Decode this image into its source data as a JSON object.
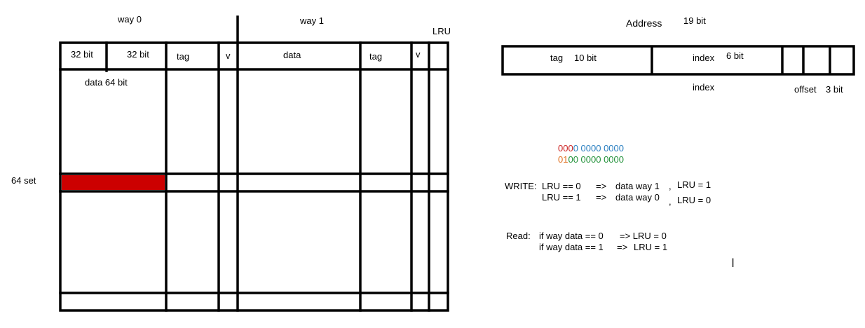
{
  "cache": {
    "way0_label": "way 0",
    "way1_label": "way 1",
    "lru_label": "LRU",
    "header_32bit_a": "32 bit",
    "header_32bit_b": "32 bit",
    "header_tag0": "tag",
    "header_v0": "v",
    "header_data1": "data",
    "header_tag1": "tag",
    "header_v1": "v",
    "data_width_label": "data 64 bit",
    "set_count_label": "64 set",
    "highlight_color": "#cc0000"
  },
  "address": {
    "title": "Address",
    "total_bits": "19 bit",
    "tag_label": "tag",
    "tag_bits": "10 bit",
    "index_label": "index",
    "index_bits": "6 bit",
    "index_below": "index",
    "offset_label": "offset",
    "offset_bits": "3 bit"
  },
  "bit_example": {
    "line1": [
      {
        "text": "000",
        "color": "#cc2222"
      },
      {
        "text": "0 0000 0000",
        "color": "#2a7fc1"
      }
    ],
    "line2": [
      {
        "text": "01",
        "color": "#e07020"
      },
      {
        "text": "00 0000 0000",
        "color": "#22913a"
      }
    ]
  },
  "write_rules": {
    "prefix": "WRITE:",
    "rule1_cond": "LRU == 0",
    "rule1_arrow": "=>",
    "rule1_action": "data way 1",
    "rule1_sep": ",",
    "rule1_update": "LRU = 1",
    "rule2_cond": "LRU == 1",
    "rule2_arrow": "=>",
    "rule2_action": "data way 0",
    "rule2_sep": ",",
    "rule2_update": "LRU = 0"
  },
  "read_rules": {
    "prefix": "Read:",
    "rule1_cond": "if way data == 0",
    "rule1_update": "=> LRU = 0",
    "rule2_cond": "if way data == 1",
    "rule2_arrow": "=>",
    "rule2_update": "LRU = 1"
  }
}
